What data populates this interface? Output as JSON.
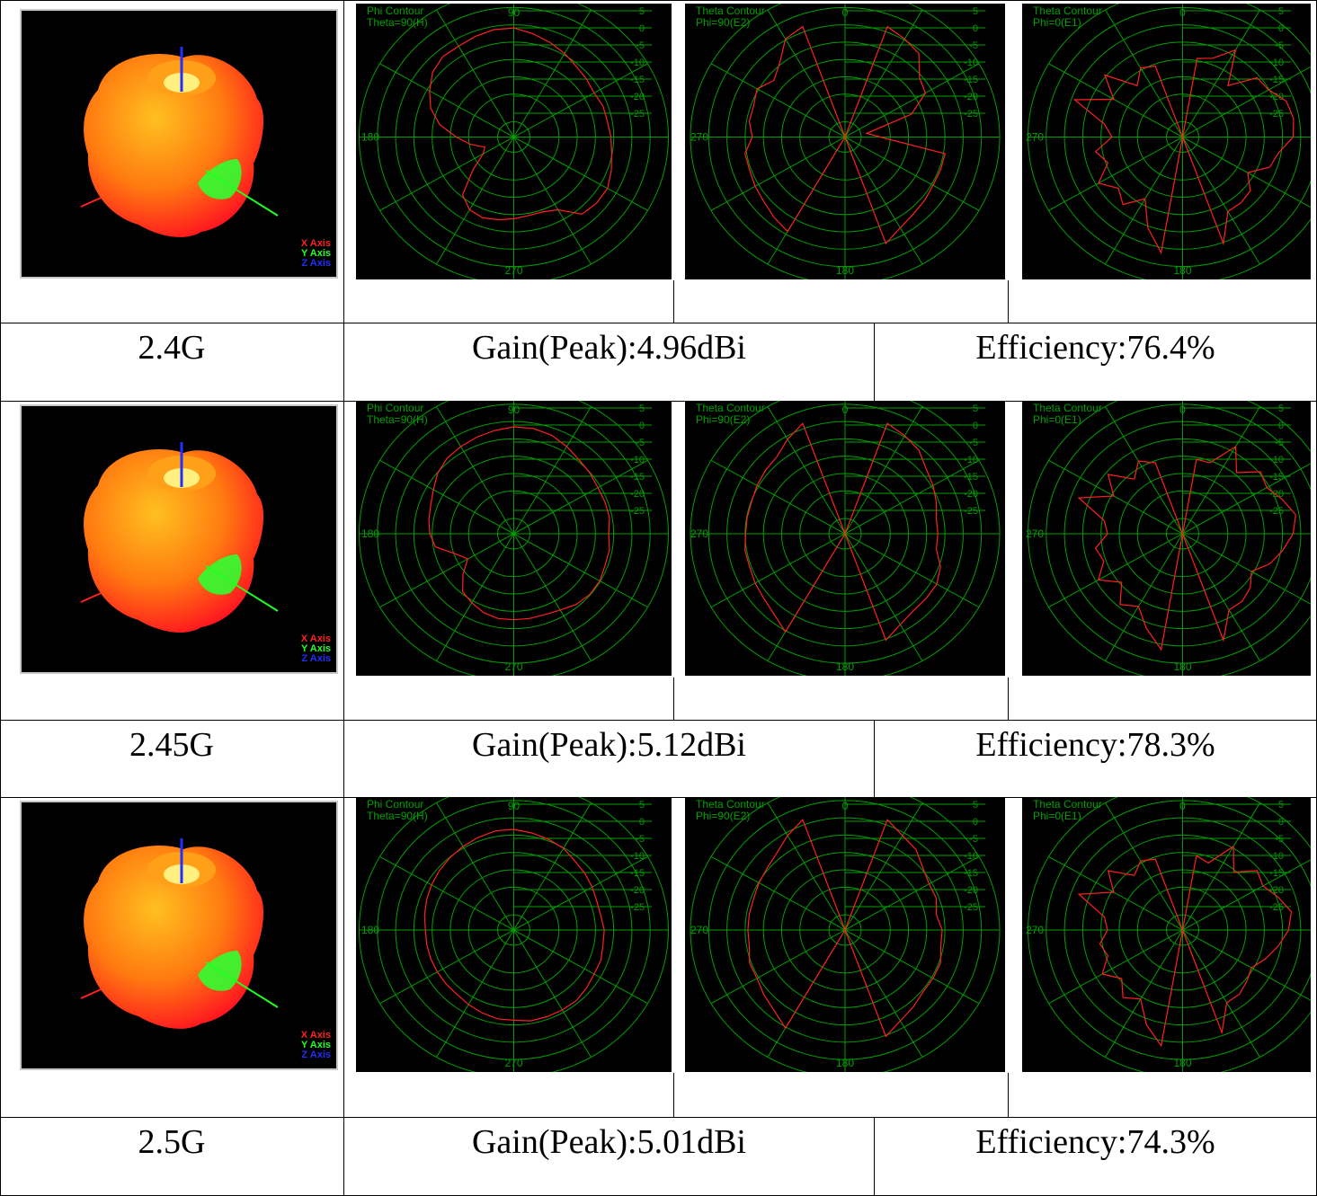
{
  "rows": [
    {
      "freq": "2.4G",
      "gain": "Gain(Peak):4.96dBi",
      "efficiency": "Efficiency:76.4%",
      "plots": [
        {
          "title1": "Phi Contour",
          "title2": "Theta=90(H)",
          "top": "90",
          "side": "180",
          "bottom": "270",
          "values": [
            -4,
            -4,
            -4.5,
            -5,
            -5,
            -6,
            -8,
            -10,
            -13,
            -17,
            -20,
            -23,
            -22,
            -18,
            -12,
            -10,
            -9.5,
            -10,
            -10.5,
            -11,
            -11,
            -10,
            -6,
            -5.5,
            -5.5,
            -6.5,
            -7.5,
            -8,
            -8.5,
            -8.5,
            -9,
            -8.5,
            -8,
            -7,
            -6,
            -5
          ]
        },
        {
          "title1": "Theta Contour",
          "title2": "Phi=90(E2)",
          "top": "0",
          "side": "270",
          "bottom": "180",
          "values": [
            -30,
            -30,
            -2,
            -3,
            -4,
            -8,
            -9,
            -14,
            -25,
            -22,
            -7,
            -7,
            -7,
            -6.5,
            -6,
            -5,
            -3,
            -30,
            -30,
            -30,
            -30,
            -4,
            -5,
            -6,
            -6.5,
            -7,
            -7,
            -9,
            -8,
            -8,
            -7,
            -9,
            -7,
            -3,
            -2,
            -30
          ]
        },
        {
          "title1": "Theta Contour",
          "title2": "Phi=0(E1)",
          "top": "0",
          "side": "270",
          "bottom": "180",
          "values": [
            -30,
            -11,
            -10,
            -6,
            -14,
            -8,
            -7.5,
            -5,
            -4.5,
            -5,
            -8,
            -9,
            -13,
            -10,
            -9.5,
            -9.5,
            -3,
            -30,
            -30,
            -2,
            -7,
            -13,
            -9,
            -11,
            -8,
            -12,
            -10,
            -14,
            -12,
            -4,
            -12,
            -7,
            -14,
            -11,
            -12,
            -30
          ]
        }
      ]
    },
    {
      "freq": "2.45G",
      "gain": "Gain(Peak):5.12dBi",
      "efficiency": "Efficiency:78.3%",
      "plots": [
        {
          "title1": "Phi Contour",
          "title2": "Theta=90(H)",
          "top": "90",
          "side": "180",
          "bottom": "270",
          "values": [
            -4.5,
            -5,
            -5.5,
            -6,
            -6.5,
            -7.5,
            -9,
            -10,
            -10.5,
            -11,
            -12,
            -16,
            -18,
            -15,
            -12,
            -11,
            -10,
            -9.5,
            -9.5,
            -9.5,
            -9.5,
            -9,
            -8,
            -7.5,
            -7.5,
            -8,
            -8,
            -8.5,
            -8,
            -8,
            -8,
            -7.5,
            -7,
            -6,
            -5,
            -4.5
          ]
        },
        {
          "title1": "Theta Contour",
          "title2": "Phi=90(E2)",
          "top": "0",
          "side": "270",
          "bottom": "180",
          "values": [
            -30,
            -30,
            -2,
            -3,
            -4,
            -6,
            -7,
            -8,
            -9,
            -9,
            -9,
            -7,
            -6,
            -6,
            -6,
            -5,
            -3,
            -30,
            -30,
            -30,
            -30,
            -3,
            -5,
            -6,
            -6.5,
            -7,
            -7,
            -7.5,
            -7.5,
            -7.5,
            -7,
            -6.5,
            -6,
            -4,
            -2,
            -30
          ]
        },
        {
          "title1": "Theta Contour",
          "title2": "Phi=0(E1)",
          "top": "0",
          "side": "270",
          "bottom": "180",
          "values": [
            -30,
            -12,
            -12,
            -6,
            -11,
            -7,
            -8,
            -6,
            -4,
            -5,
            -7,
            -9,
            -12,
            -10,
            -9,
            -9,
            -3,
            -30,
            -30,
            -2,
            -6,
            -10,
            -8,
            -12,
            -8,
            -11,
            -10,
            -13,
            -12,
            -5,
            -12,
            -8,
            -13,
            -10,
            -12,
            -30
          ]
        }
      ]
    },
    {
      "freq": "2.5G",
      "gain": "Gain(Peak):5.01dBi",
      "efficiency": "Efficiency:74.3%",
      "plots": [
        {
          "title1": "Phi Contour",
          "title2": "Theta=90(H)",
          "top": "90",
          "side": "180",
          "bottom": "270",
          "values": [
            -6,
            -6,
            -6.5,
            -7,
            -7.5,
            -8,
            -8.5,
            -9,
            -9.5,
            -10,
            -10,
            -10,
            -10,
            -10,
            -10,
            -9.5,
            -9,
            -8.5,
            -8.5,
            -8,
            -8,
            -8,
            -8,
            -8.5,
            -9,
            -9,
            -9.5,
            -9.5,
            -10,
            -10,
            -9.5,
            -9,
            -8.5,
            -7.5,
            -7,
            -6.5
          ]
        },
        {
          "title1": "Theta Contour",
          "title2": "Phi=90(E2)",
          "top": "0",
          "side": "270",
          "bottom": "180",
          "values": [
            -30,
            -30,
            -2,
            -4,
            -5,
            -7,
            -8,
            -8,
            -9,
            -8,
            -8,
            -7,
            -7,
            -7,
            -6,
            -5,
            -3,
            -30,
            -30,
            -30,
            -30,
            -3,
            -5,
            -6,
            -7,
            -7,
            -8,
            -8,
            -8,
            -8,
            -7.5,
            -7,
            -6,
            -4,
            -2,
            -30
          ]
        },
        {
          "title1": "Theta Contour",
          "title2": "Phi=0(E1)",
          "top": "0",
          "side": "270",
          "bottom": "180",
          "values": [
            -30,
            -12,
            -13,
            -7,
            -12,
            -8,
            -9,
            -7,
            -5,
            -6,
            -8,
            -10,
            -12,
            -11,
            -10,
            -10,
            -4,
            -30,
            -30,
            -2,
            -6,
            -11,
            -9,
            -12,
            -9,
            -12,
            -11,
            -13,
            -12,
            -5,
            -12,
            -8,
            -13,
            -11,
            -12,
            -30
          ]
        }
      ]
    }
  ],
  "axis_legend": [
    "X Axis",
    "Y Axis",
    "Z Axis"
  ],
  "ring_labels": [
    "5",
    "0",
    "-5",
    "-10",
    "-15",
    "-20",
    "-25"
  ],
  "colors": {
    "grid": "#00a000",
    "trace": "#ff2020",
    "background": "#000000",
    "x_axis": "#ff2020",
    "y_axis": "#20ff20",
    "z_axis": "#2030ff"
  },
  "chart_data": [
    {
      "type": "polar-line",
      "series": [
        {
          "values": [
            -4,
            -4,
            -4.5,
            -5,
            -5,
            -6,
            -8,
            -10,
            -13,
            -17,
            -20,
            -23,
            -22,
            -18,
            -12,
            -10,
            -9.5,
            -10,
            -10.5,
            -11,
            -11,
            -10,
            -6,
            -5.5,
            -5.5,
            -6.5,
            -7.5,
            -8,
            -8.5,
            -8.5,
            -9,
            -8.5,
            -8,
            -7,
            -6,
            -5
          ]
        }
      ],
      "rlim": [
        -30,
        5
      ],
      "title": "Phi Contour"
    },
    {
      "type": "polar-line",
      "series": [
        {
          "values": [
            -4.5,
            -5,
            -5.5,
            -6,
            -6.5,
            -7.5,
            -9,
            -10,
            -10.5,
            -11,
            -12,
            -16,
            -18,
            -15,
            -12,
            -11,
            -10,
            -9.5,
            -9.5,
            -9.5,
            -9.5,
            -9,
            -8,
            -7.5,
            -7.5,
            -8,
            -8,
            -8.5,
            -8,
            -8,
            -8,
            -7.5,
            -7,
            -6,
            -5,
            -4.5
          ]
        }
      ],
      "rlim": [
        -30,
        5
      ],
      "title": "Phi Contour"
    },
    {
      "type": "polar-line",
      "series": [
        {
          "values": [
            -6,
            -6,
            -6.5,
            -7,
            -7.5,
            -8,
            -8.5,
            -9,
            -9.5,
            -10,
            -10,
            -10,
            -10,
            -10,
            -10,
            -9.5,
            -9,
            -8.5,
            -8.5,
            -8,
            -8,
            -8,
            -8,
            -8.5,
            -9,
            -9,
            -9.5,
            -9.5,
            -10,
            -10,
            -9.5,
            -9,
            -8.5,
            -7.5,
            -7,
            -6.5
          ]
        }
      ],
      "rlim": [
        -30,
        5
      ],
      "title": "Phi Contour"
    }
  ]
}
